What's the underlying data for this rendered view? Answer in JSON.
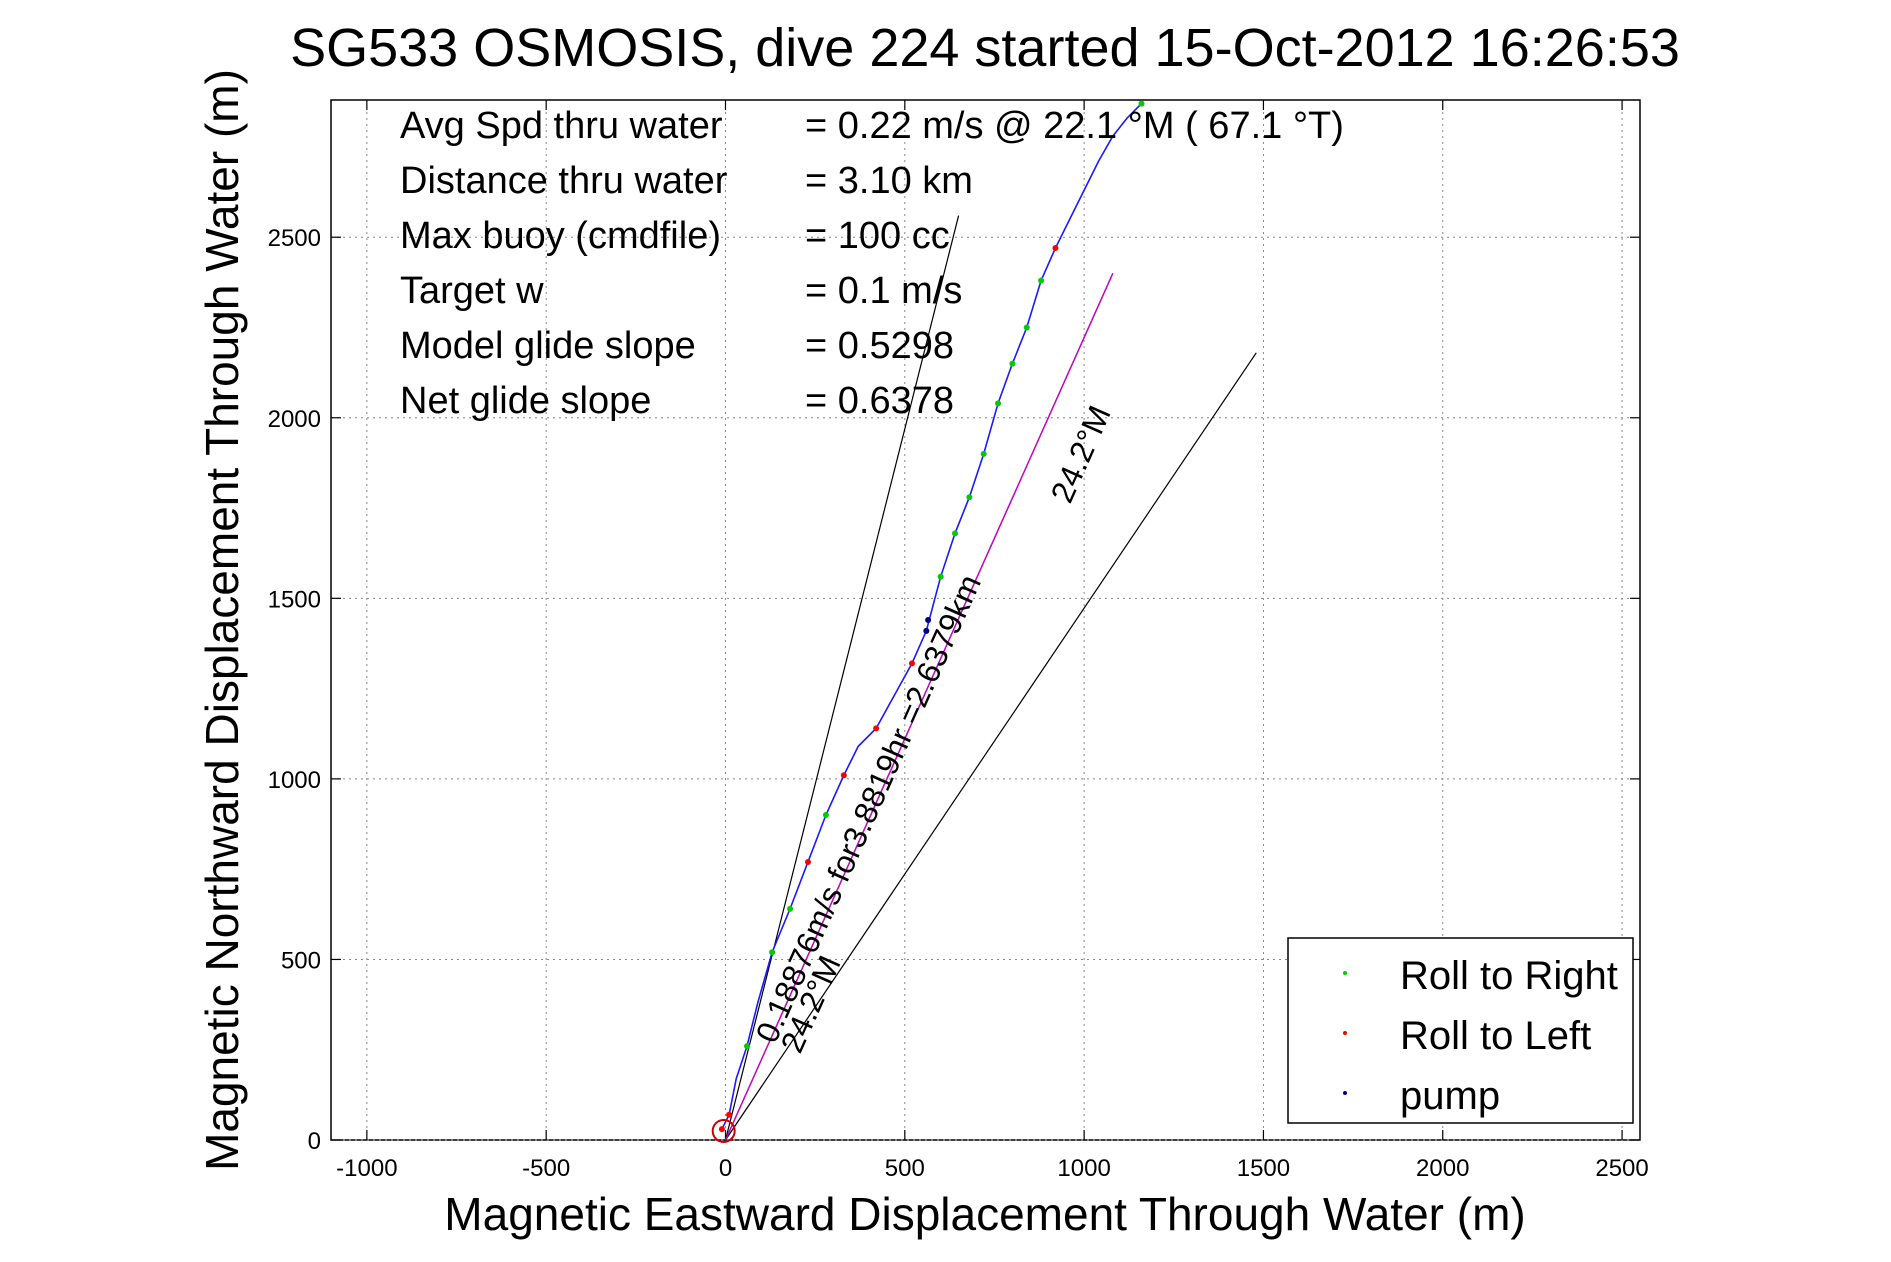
{
  "chart_data": {
    "type": "line",
    "title": "SG533 OSMOSIS, dive 224 started 15-Oct-2012 16:26:53",
    "xlabel": "Magnetic Eastward Displacement Through Water (m)",
    "ylabel": "Magnetic Northward Displacement Through Water (m)",
    "xlim": [
      -1100,
      2550
    ],
    "ylim": [
      0,
      2880
    ],
    "xticks": [
      -1000,
      -500,
      0,
      500,
      1000,
      1500,
      2000,
      2500
    ],
    "yticks": [
      0,
      500,
      1000,
      1500,
      2000,
      2500
    ],
    "xtick_labels": [
      "-1000",
      "-500",
      "0",
      "500",
      "1000",
      "1500",
      "2000",
      "2500"
    ],
    "ytick_labels": [
      "0",
      "500",
      "1000",
      "1500",
      "2000",
      "2500"
    ],
    "grid": true,
    "legend_position": "bottom-right",
    "stats": [
      {
        "label": "Avg Spd thru water",
        "value": "=  0.22 m/s @  22.1 °M ( 67.1 °T)"
      },
      {
        "label": "Distance thru water",
        "value": "=  3.10 km"
      },
      {
        "label": "Max buoy (cmdfile)",
        "value": "= 100 cc"
      },
      {
        "label": "Target w",
        "value": "= 0.1 m/s"
      },
      {
        "label": "Model glide slope",
        "value": "= 0.5298"
      },
      {
        "label": "Net glide slope",
        "value": "= 0.6378"
      }
    ],
    "annotations": {
      "heading_near": "24.2°M",
      "heading_far": "24.2°M",
      "current": "0.18876m/s for3.8819hr =2.6379km"
    },
    "track": {
      "x": [
        -10,
        10,
        30,
        60,
        90,
        130,
        180,
        230,
        280,
        330,
        370,
        420,
        470,
        520,
        560,
        600,
        640,
        680,
        720,
        760,
        800,
        840,
        880,
        920,
        960,
        1000,
        1040,
        1080,
        1120,
        1160
      ],
      "y": [
        30,
        70,
        170,
        260,
        380,
        520,
        640,
        770,
        900,
        1010,
        1090,
        1140,
        1230,
        1320,
        1410,
        1560,
        1680,
        1780,
        1900,
        2040,
        2150,
        2250,
        2380,
        2470,
        2550,
        2630,
        2710,
        2780,
        2830,
        2870
      ]
    },
    "heading_lines": [
      {
        "x": [
          0,
          650
        ],
        "y": [
          0,
          2560
        ]
      },
      {
        "x": [
          0,
          1080
        ],
        "y": [
          0,
          2400
        ]
      },
      {
        "x": [
          0,
          1480
        ],
        "y": [
          0,
          2180
        ]
      }
    ],
    "current_line": {
      "x": [
        0,
        1080
      ],
      "y": [
        0,
        2400
      ]
    },
    "series": [
      {
        "name": "Roll to Right",
        "color": "#00cc00",
        "x": [
          60,
          130,
          180,
          280,
          560,
          600,
          640,
          680,
          720,
          760,
          800,
          840,
          880,
          1160
        ],
        "y": [
          260,
          520,
          640,
          900,
          1410,
          1560,
          1680,
          1780,
          1900,
          2040,
          2150,
          2250,
          2380,
          2870
        ]
      },
      {
        "name": "Roll to Left",
        "color": "#ff0000",
        "x": [
          -10,
          10,
          230,
          330,
          420,
          520,
          920
        ],
        "y": [
          30,
          70,
          770,
          1010,
          1140,
          1320,
          2470
        ]
      },
      {
        "name": "pump",
        "color": "#000080",
        "x": [
          560,
          565
        ],
        "y": [
          1410,
          1440
        ]
      }
    ]
  }
}
